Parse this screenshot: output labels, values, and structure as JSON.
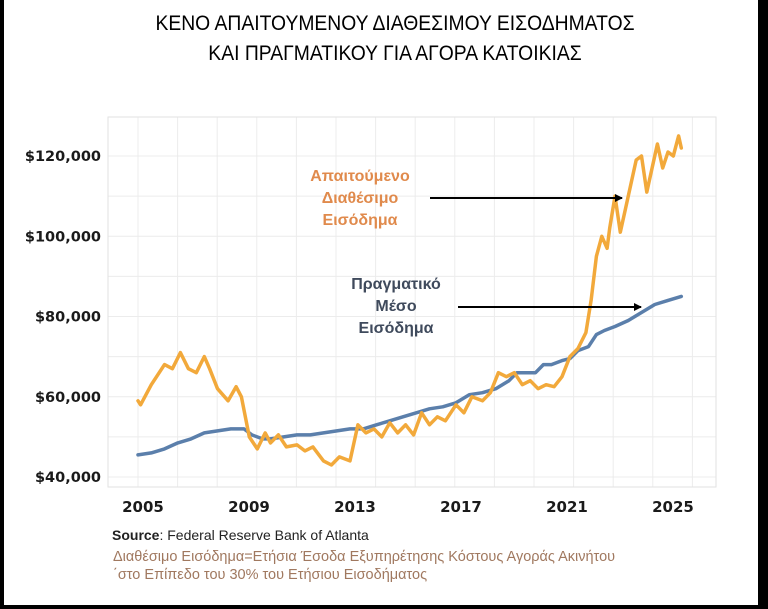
{
  "title": {
    "line1": "ΚΕΝΟ ΑΠΑΙΤΟΥΜΕΝΟΥ ΔΙΑΘΕΣΙΜΟΥ ΕΙΣΟΔΗΜΑΤΟΣ",
    "line2": "ΚΑΙ ΠΡΑΓΜΑΤΙΚΟΥ ΓΙΑ ΑΓΟΡΑ ΚΑΤΟΙΚΙΑΣ"
  },
  "annotations": {
    "required": [
      "Απαιτούμενο",
      "Διαθέσιμο",
      "Εισόδημα"
    ],
    "actual": [
      "Πραγματικό",
      "Μέσο",
      "Εισόδημα"
    ]
  },
  "footer": {
    "source_label": "Source",
    "source_text": ": Federal Reserve Bank of Atlanta",
    "note_line1": "Διαθέσιμο Εισόδημα=Ετήσια Έσοδα Εξυπηρέτησης Κόστους Αγοράς Ακινήτου",
    "note_line2": "΄στο Επίπεδο του 30% του Ετήσιου Εισοδήματος"
  },
  "colors": {
    "required": "#f2a93b",
    "actual": "#5b7fab",
    "annotation_required": "#e08a4c",
    "annotation_actual": "#3f4a5c",
    "grid": "#ececec",
    "note": "#a0785f"
  },
  "chart_data": {
    "type": "line",
    "title": "ΚΕΝΟ ΑΠΑΙΤΟΥΜΕΝΟΥ ΔΙΑΘΕΣΙΜΟΥ ΕΙΣΟΔΗΜΑΤΟΣ ΚΑΙ ΠΡΑΓΜΑΤΙΚΟΥ ΓΙΑ ΑΓΟΡΑ ΚΑΤΟΙΚΙΑΣ",
    "xlabel": "",
    "ylabel": "",
    "xlim": [
      2005,
      2025.5
    ],
    "ylim": [
      40000,
      128000
    ],
    "x_ticks": [
      2005,
      2009,
      2013,
      2017,
      2021,
      2025
    ],
    "x_tick_labels": [
      "2005",
      "2009",
      "2013",
      "2017",
      "2021",
      "2025"
    ],
    "y_ticks": [
      40000,
      60000,
      80000,
      100000,
      120000
    ],
    "y_tick_labels": [
      "$40,000",
      "$60,000",
      "$80,000",
      "$100,000",
      "$120,000"
    ],
    "grid": true,
    "legend": "inline annotations with arrows",
    "series": [
      {
        "name": "Απαιτούμενο Διαθέσιμο Εισόδημα",
        "color": "#f2a93b",
        "x": [
          2005.0,
          2005.1,
          2005.5,
          2006.0,
          2006.3,
          2006.6,
          2006.9,
          2007.2,
          2007.5,
          2007.7,
          2008.0,
          2008.4,
          2008.7,
          2008.9,
          2009.2,
          2009.5,
          2009.8,
          2010.0,
          2010.3,
          2010.6,
          2011.0,
          2011.3,
          2011.6,
          2012.0,
          2012.3,
          2012.6,
          2013.0,
          2013.3,
          2013.6,
          2013.9,
          2014.2,
          2014.5,
          2014.8,
          2015.1,
          2015.4,
          2015.7,
          2016.0,
          2016.3,
          2016.6,
          2017.0,
          2017.3,
          2017.6,
          2018.0,
          2018.3,
          2018.6,
          2018.9,
          2019.2,
          2019.5,
          2019.8,
          2020.1,
          2020.4,
          2020.7,
          2021.0,
          2021.3,
          2021.6,
          2021.9,
          2022.1,
          2022.3,
          2022.5,
          2022.7,
          2022.8,
          2023.0,
          2023.2,
          2023.4,
          2023.6,
          2023.8,
          2024.0,
          2024.2,
          2024.4,
          2024.6,
          2024.8,
          2025.0,
          2025.2,
          2025.4,
          2025.5
        ],
        "values": [
          59000,
          58000,
          63000,
          68000,
          67000,
          71000,
          67000,
          66000,
          70000,
          67000,
          62000,
          59000,
          62500,
          60000,
          50000,
          47000,
          51000,
          48500,
          50500,
          47500,
          48000,
          46500,
          47500,
          44000,
          43000,
          45000,
          44000,
          53000,
          51000,
          52000,
          50000,
          53500,
          51000,
          53000,
          50500,
          56000,
          53000,
          55000,
          54000,
          58000,
          56000,
          60000,
          59000,
          61000,
          66000,
          65000,
          66000,
          63000,
          64000,
          62000,
          63000,
          62500,
          65000,
          70000,
          72000,
          76000,
          84000,
          95000,
          100000,
          97000,
          102000,
          110000,
          101000,
          107000,
          113000,
          119000,
          120000,
          111000,
          117000,
          123000,
          117000,
          121000,
          120000,
          125000,
          122000
        ]
      },
      {
        "name": "Πραγματικό Μέσο Εισόδημα",
        "color": "#5b7fab",
        "x": [
          2005.0,
          2005.5,
          2006.0,
          2006.5,
          2007.0,
          2007.5,
          2008.0,
          2008.5,
          2009.0,
          2009.3,
          2009.7,
          2010.0,
          2010.5,
          2011.0,
          2011.5,
          2012.0,
          2012.5,
          2013.0,
          2013.5,
          2014.0,
          2014.5,
          2015.0,
          2015.5,
          2016.0,
          2016.5,
          2017.0,
          2017.5,
          2018.0,
          2018.5,
          2019.0,
          2019.3,
          2019.6,
          2020.0,
          2020.3,
          2020.6,
          2021.0,
          2021.3,
          2021.6,
          2022.0,
          2022.3,
          2022.6,
          2023.0,
          2023.5,
          2024.0,
          2024.5,
          2025.0,
          2025.5
        ],
        "values": [
          45500,
          46000,
          47000,
          48500,
          49500,
          51000,
          51500,
          52000,
          52000,
          50500,
          49500,
          49500,
          50000,
          50500,
          50500,
          51000,
          51500,
          52000,
          52000,
          53000,
          54000,
          55000,
          56000,
          57000,
          57500,
          58500,
          60500,
          61000,
          62000,
          64000,
          66000,
          66000,
          66000,
          68000,
          68000,
          69000,
          69500,
          71500,
          72500,
          75500,
          76500,
          77500,
          79000,
          81000,
          83000,
          84000,
          85000
        ]
      }
    ]
  }
}
